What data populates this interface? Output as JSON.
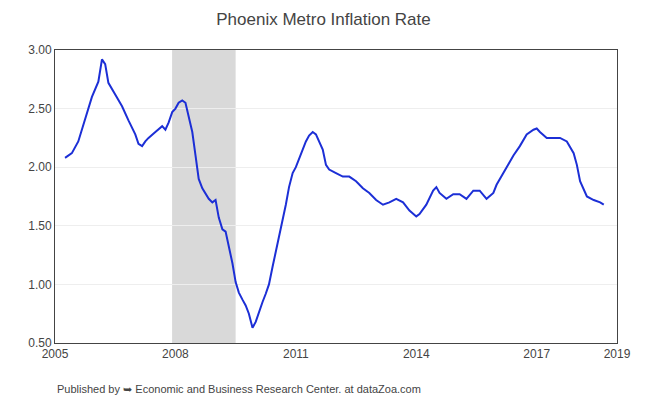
{
  "chart_data": {
    "type": "line",
    "title": "Phoenix Metro Inflation Rate",
    "annotations": [
      "Published by ➥ Economic and Business Research Center. at dataZoa.com"
    ],
    "color": "#1c2fd6",
    "recession": {
      "x": [
        2007.917,
        2009.5
      ],
      "color": "#d9d9d9"
    },
    "xlim": [
      2005.0,
      2019.0
    ],
    "ylim": [
      0.5,
      3.0
    ],
    "xticks": [
      2005,
      2008,
      2011,
      2014,
      2017,
      2019
    ],
    "yticks": [
      {
        "value": 0.5,
        "label": "0.50"
      },
      {
        "value": 1.0,
        "label": "1.00"
      },
      {
        "value": 1.5,
        "label": "1.50"
      },
      {
        "value": 2.0,
        "label": "2.00"
      },
      {
        "value": 2.5,
        "label": "2.50"
      },
      {
        "value": 3.0,
        "label": "3.00"
      }
    ],
    "grid": "y",
    "x": [
      2005.25,
      2005.42,
      2005.58,
      2005.75,
      2005.92,
      2006.08,
      2006.17,
      2006.25,
      2006.33,
      2006.5,
      2006.67,
      2006.83,
      2007.0,
      2007.08,
      2007.17,
      2007.25,
      2007.33,
      2007.5,
      2007.67,
      2007.75,
      2007.83,
      2007.92,
      2008.0,
      2008.08,
      2008.17,
      2008.25,
      2008.33,
      2008.42,
      2008.5,
      2008.58,
      2008.67,
      2008.75,
      2008.83,
      2008.92,
      2009.0,
      2009.08,
      2009.17,
      2009.25,
      2009.33,
      2009.42,
      2009.5,
      2009.58,
      2009.67,
      2009.75,
      2009.83,
      2009.92,
      2010.0,
      2010.08,
      2010.17,
      2010.25,
      2010.33,
      2010.42,
      2010.58,
      2010.75,
      2010.83,
      2010.92,
      2011.0,
      2011.08,
      2011.17,
      2011.25,
      2011.33,
      2011.42,
      2011.5,
      2011.58,
      2011.67,
      2011.75,
      2011.83,
      2012.0,
      2012.17,
      2012.33,
      2012.5,
      2012.67,
      2012.83,
      2013.0,
      2013.17,
      2013.33,
      2013.5,
      2013.67,
      2013.83,
      2014.0,
      2014.08,
      2014.25,
      2014.42,
      2014.5,
      2014.58,
      2014.75,
      2014.92,
      2015.08,
      2015.25,
      2015.42,
      2015.58,
      2015.75,
      2015.92,
      2016.0,
      2016.08,
      2016.25,
      2016.42,
      2016.58,
      2016.75,
      2016.92,
      2017.0,
      2017.08,
      2017.25,
      2017.42,
      2017.58,
      2017.75,
      2017.92,
      2018.0,
      2018.08,
      2018.25,
      2018.42,
      2018.58,
      2018.67
    ],
    "values": [
      2.08,
      2.12,
      2.22,
      2.42,
      2.6,
      2.73,
      2.92,
      2.88,
      2.72,
      2.62,
      2.52,
      2.4,
      2.28,
      2.2,
      2.18,
      2.22,
      2.25,
      2.3,
      2.35,
      2.32,
      2.38,
      2.47,
      2.5,
      2.55,
      2.57,
      2.55,
      2.42,
      2.3,
      2.1,
      1.9,
      1.82,
      1.77,
      1.73,
      1.7,
      1.72,
      1.57,
      1.47,
      1.45,
      1.33,
      1.18,
      1.02,
      0.93,
      0.87,
      0.82,
      0.75,
      0.63,
      0.68,
      0.77,
      0.85,
      0.92,
      1.0,
      1.15,
      1.4,
      1.68,
      1.83,
      1.95,
      2.0,
      2.07,
      2.15,
      2.22,
      2.27,
      2.3,
      2.28,
      2.22,
      2.15,
      2.02,
      1.98,
      1.95,
      1.92,
      1.92,
      1.88,
      1.82,
      1.78,
      1.72,
      1.68,
      1.7,
      1.73,
      1.7,
      1.63,
      1.58,
      1.6,
      1.68,
      1.8,
      1.83,
      1.78,
      1.73,
      1.77,
      1.77,
      1.73,
      1.8,
      1.8,
      1.73,
      1.78,
      1.85,
      1.9,
      2.0,
      2.1,
      2.18,
      2.28,
      2.32,
      2.33,
      2.3,
      2.25,
      2.25,
      2.25,
      2.22,
      2.12,
      2.02,
      1.88,
      1.75,
      1.72,
      1.7,
      1.68
    ]
  }
}
